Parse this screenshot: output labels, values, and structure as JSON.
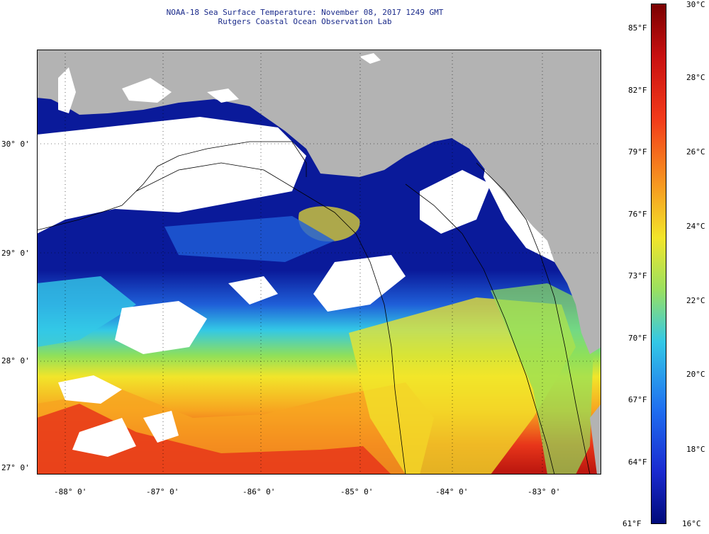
{
  "title": {
    "line1": "NOAA-18 Sea Surface Temperature:  November 08, 2017 1249 GMT",
    "line2": "Rutgers Coastal Ocean Observation Lab"
  },
  "map": {
    "lat_labels": [
      "30° 0'",
      "29° 0'",
      "28° 0'",
      "27° 0'"
    ],
    "lon_labels": [
      "-88° 0'",
      "-87° 0'",
      "-86° 0'",
      "-85° 0'",
      "-84° 0'",
      "-83° 0'"
    ],
    "colors": {
      "land": "#b3b3b3",
      "cloud": "#ffffff",
      "cold": "#0a1a9a",
      "blue": "#1f5fd8",
      "cyan": "#33c8e6",
      "green": "#8fe05a",
      "yellow": "#f2e52a",
      "orange": "#f7a420",
      "red": "#e8361a",
      "darkred": "#b8140e"
    }
  },
  "colorbar": {
    "celsius": [
      "30°C",
      "28°C",
      "26°C",
      "24°C",
      "22°C",
      "20°C",
      "18°C",
      "16°C"
    ],
    "fahrenheit": [
      "85°F",
      "82°F",
      "79°F",
      "76°F",
      "73°F",
      "70°F",
      "67°F",
      "64°F",
      "61°F"
    ],
    "range_c": [
      16,
      30
    ]
  }
}
